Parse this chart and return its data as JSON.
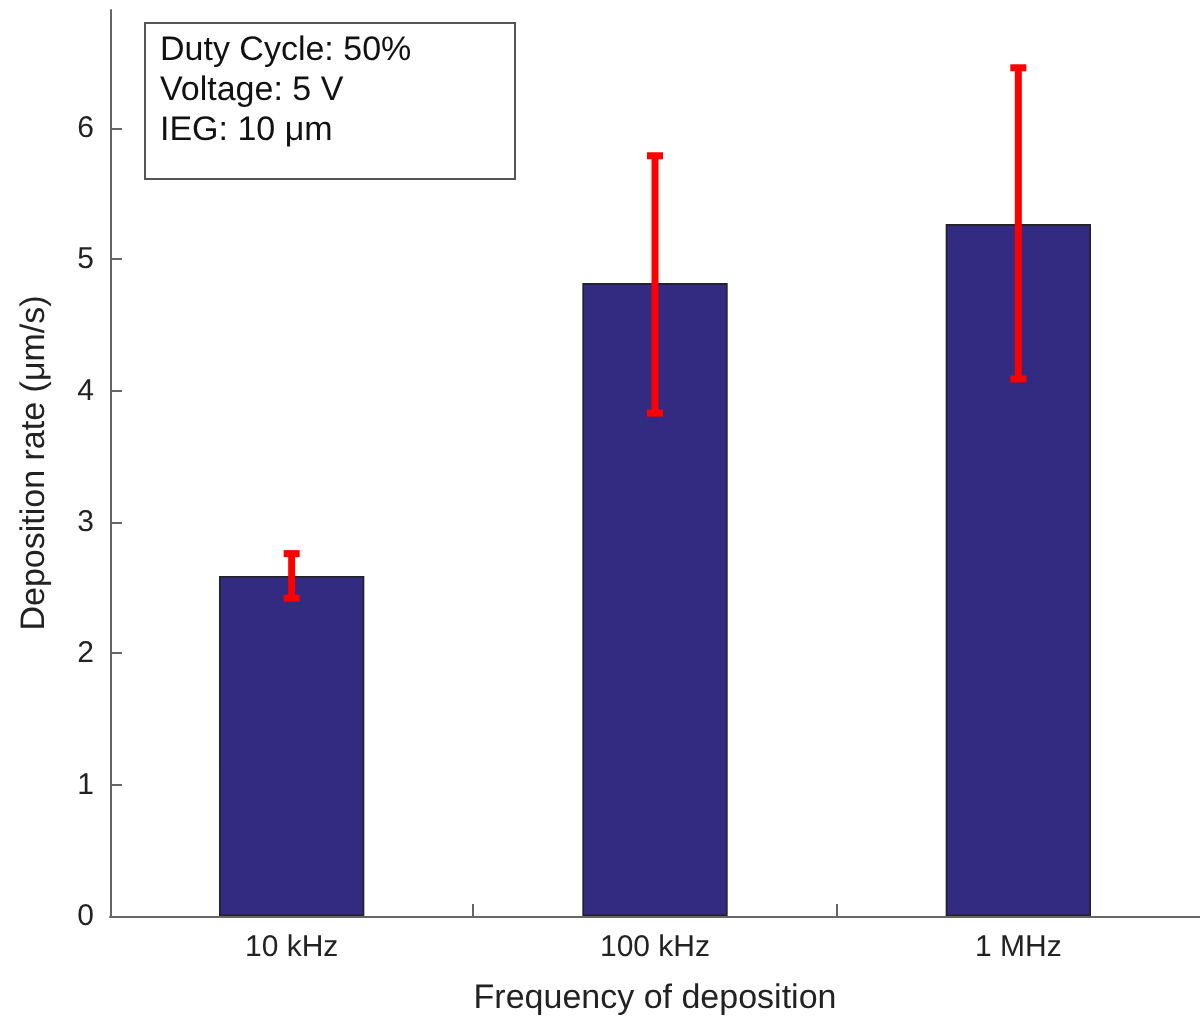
{
  "chart_data": {
    "type": "bar",
    "xlabel": "Frequency of deposition",
    "ylabel": "Deposition rate (μm/s)",
    "categories": [
      "10 kHz",
      "100 kHz",
      "1 MHz"
    ],
    "series": [
      {
        "color": "#332a82",
        "values": [
          2.59,
          4.82,
          5.27
        ],
        "errors": [
          [
            2.42,
            2.76
          ],
          [
            3.83,
            5.79
          ],
          [
            4.09,
            6.46
          ]
        ]
      }
    ],
    "ylim": [
      0,
      6.9
    ],
    "yticks": [
      0,
      1,
      2,
      3,
      4,
      5,
      6
    ],
    "grid": false,
    "annotations": [
      "Duty Cycle: 50%",
      "Voltage: 5 V",
      "IEG: 10 μm"
    ]
  }
}
